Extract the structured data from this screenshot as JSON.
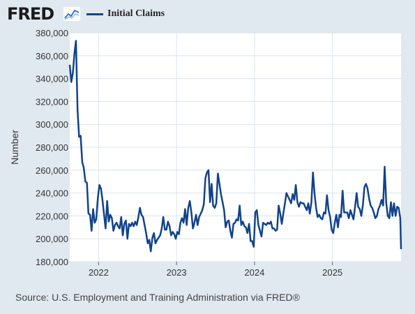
{
  "header": {
    "logo_text": "FRED",
    "logo_icon": "trend-line-icon",
    "legend_label": "Initial Claims"
  },
  "colors": {
    "series": "#12428a",
    "background": "#e1e9f0",
    "plot_background": "#ffffff",
    "grid": "#dbe3ea"
  },
  "footer": {
    "source": "Source: U.S. Employment and Training Administration via FRED®"
  },
  "chart_data": {
    "type": "line",
    "title": "",
    "ylabel": "Number",
    "xlabel": "",
    "ylim": [
      180000,
      380000
    ],
    "xlim": [
      2021.63,
      2025.88
    ],
    "y_ticks": [
      180000,
      200000,
      220000,
      240000,
      260000,
      280000,
      300000,
      320000,
      340000,
      360000,
      380000
    ],
    "y_tick_labels": [
      "180,000",
      "200,000",
      "220,000",
      "240,000",
      "260,000",
      "280,000",
      "300,000",
      "320,000",
      "340,000",
      "360,000",
      "380,000"
    ],
    "x_ticks": [
      2022,
      2023,
      2024,
      2025
    ],
    "x_tick_labels": [
      "2022",
      "2023",
      "2024",
      "2025"
    ],
    "grid": true,
    "series": [
      {
        "name": "Initial Claims",
        "points": [
          [
            2021.63,
            352000
          ],
          [
            2021.65,
            337000
          ],
          [
            2021.67,
            345000
          ],
          [
            2021.69,
            362000
          ],
          [
            2021.71,
            373000
          ],
          [
            2021.73,
            312000
          ],
          [
            2021.75,
            289000
          ],
          [
            2021.77,
            290000
          ],
          [
            2021.79,
            267000
          ],
          [
            2021.81,
            262000
          ],
          [
            2021.83,
            250000
          ],
          [
            2021.85,
            249000
          ],
          [
            2021.87,
            222000
          ],
          [
            2021.89,
            221000
          ],
          [
            2021.91,
            207000
          ],
          [
            2021.93,
            226000
          ],
          [
            2021.95,
            214000
          ],
          [
            2021.97,
            217000
          ],
          [
            2021.99,
            235000
          ],
          [
            2022.01,
            247000
          ],
          [
            2022.03,
            244000
          ],
          [
            2022.05,
            234000
          ],
          [
            2022.07,
            221000
          ],
          [
            2022.09,
            209000
          ],
          [
            2022.11,
            233000
          ],
          [
            2022.13,
            215000
          ],
          [
            2022.15,
            221000
          ],
          [
            2022.17,
            218000
          ],
          [
            2022.19,
            207000
          ],
          [
            2022.21,
            212000
          ],
          [
            2022.23,
            214000
          ],
          [
            2022.25,
            211000
          ],
          [
            2022.27,
            209000
          ],
          [
            2022.29,
            219000
          ],
          [
            2022.31,
            203000
          ],
          [
            2022.33,
            213000
          ],
          [
            2022.35,
            216000
          ],
          [
            2022.37,
            200000
          ],
          [
            2022.39,
            213000
          ],
          [
            2022.41,
            211000
          ],
          [
            2022.43,
            214000
          ],
          [
            2022.45,
            211000
          ],
          [
            2022.47,
            215000
          ],
          [
            2022.49,
            212000
          ],
          [
            2022.51,
            219000
          ],
          [
            2022.53,
            227000
          ],
          [
            2022.55,
            221000
          ],
          [
            2022.57,
            219000
          ],
          [
            2022.59,
            212000
          ],
          [
            2022.61,
            205000
          ],
          [
            2022.63,
            196000
          ],
          [
            2022.65,
            199000
          ],
          [
            2022.67,
            189000
          ],
          [
            2022.69,
            201000
          ],
          [
            2022.71,
            205000
          ],
          [
            2022.73,
            196000
          ],
          [
            2022.75,
            199000
          ],
          [
            2022.77,
            201000
          ],
          [
            2022.79,
            203000
          ],
          [
            2022.81,
            209000
          ],
          [
            2022.83,
            219000
          ],
          [
            2022.85,
            208000
          ],
          [
            2022.87,
            208000
          ],
          [
            2022.89,
            215000
          ],
          [
            2022.91,
            211000
          ],
          [
            2022.93,
            203000
          ],
          [
            2022.95,
            206000
          ],
          [
            2022.97,
            204000
          ],
          [
            2022.99,
            200000
          ],
          [
            2023.01,
            206000
          ],
          [
            2023.03,
            204000
          ],
          [
            2023.05,
            214000
          ],
          [
            2023.07,
            218000
          ],
          [
            2023.09,
            214000
          ],
          [
            2023.11,
            226000
          ],
          [
            2023.13,
            212000
          ],
          [
            2023.15,
            227000
          ],
          [
            2023.17,
            233000
          ],
          [
            2023.19,
            223000
          ],
          [
            2023.21,
            209000
          ],
          [
            2023.23,
            214000
          ],
          [
            2023.25,
            221000
          ],
          [
            2023.27,
            212000
          ],
          [
            2023.29,
            219000
          ],
          [
            2023.31,
            222000
          ],
          [
            2023.33,
            225000
          ],
          [
            2023.35,
            230000
          ],
          [
            2023.37,
            253000
          ],
          [
            2023.39,
            258000
          ],
          [
            2023.41,
            260000
          ],
          [
            2023.43,
            232000
          ],
          [
            2023.45,
            248000
          ],
          [
            2023.47,
            229000
          ],
          [
            2023.49,
            227000
          ],
          [
            2023.51,
            231000
          ],
          [
            2023.53,
            257000
          ],
          [
            2023.55,
            248000
          ],
          [
            2023.57,
            239000
          ],
          [
            2023.59,
            232000
          ],
          [
            2023.61,
            225000
          ],
          [
            2023.63,
            210000
          ],
          [
            2023.65,
            215000
          ],
          [
            2023.67,
            216000
          ],
          [
            2023.69,
            207000
          ],
          [
            2023.71,
            201000
          ],
          [
            2023.73,
            213000
          ],
          [
            2023.75,
            214000
          ],
          [
            2023.77,
            217000
          ],
          [
            2023.79,
            216000
          ],
          [
            2023.81,
            229000
          ],
          [
            2023.83,
            212000
          ],
          [
            2023.85,
            215000
          ],
          [
            2023.87,
            211000
          ],
          [
            2023.89,
            210000
          ],
          [
            2023.91,
            205000
          ],
          [
            2023.93,
            213000
          ],
          [
            2023.95,
            198000
          ],
          [
            2023.97,
            198000
          ],
          [
            2023.99,
            193000
          ],
          [
            2024.01,
            223000
          ],
          [
            2024.03,
            225000
          ],
          [
            2024.05,
            212000
          ],
          [
            2024.07,
            207000
          ],
          [
            2024.09,
            202000
          ],
          [
            2024.11,
            214000
          ],
          [
            2024.13,
            213000
          ],
          [
            2024.15,
            212000
          ],
          [
            2024.17,
            214000
          ],
          [
            2024.19,
            213000
          ],
          [
            2024.21,
            215000
          ],
          [
            2024.23,
            209000
          ],
          [
            2024.25,
            209000
          ],
          [
            2024.27,
            207000
          ],
          [
            2024.29,
            208000
          ],
          [
            2024.31,
            229000
          ],
          [
            2024.33,
            222000
          ],
          [
            2024.35,
            213000
          ],
          [
            2024.37,
            222000
          ],
          [
            2024.39,
            231000
          ],
          [
            2024.41,
            240000
          ],
          [
            2024.43,
            237000
          ],
          [
            2024.45,
            234000
          ],
          [
            2024.47,
            231000
          ],
          [
            2024.49,
            239000
          ],
          [
            2024.51,
            234000
          ],
          [
            2024.53,
            247000
          ],
          [
            2024.55,
            232000
          ],
          [
            2024.57,
            228000
          ],
          [
            2024.59,
            232000
          ],
          [
            2024.61,
            231000
          ],
          [
            2024.63,
            231000
          ],
          [
            2024.65,
            228000
          ],
          [
            2024.67,
            225000
          ],
          [
            2024.69,
            231000
          ],
          [
            2024.71,
            222000
          ],
          [
            2024.73,
            232000
          ],
          [
            2024.75,
            258000
          ],
          [
            2024.77,
            240000
          ],
          [
            2024.79,
            227000
          ],
          [
            2024.81,
            219000
          ],
          [
            2024.83,
            221000
          ],
          [
            2024.85,
            218000
          ],
          [
            2024.87,
            217000
          ],
          [
            2024.89,
            223000
          ],
          [
            2024.91,
            222000
          ],
          [
            2024.93,
            238000
          ],
          [
            2024.95,
            225000
          ],
          [
            2024.97,
            219000
          ],
          [
            2024.99,
            208000
          ],
          [
            2025.01,
            205000
          ],
          [
            2025.03,
            214000
          ],
          [
            2025.05,
            221000
          ],
          [
            2025.07,
            210000
          ],
          [
            2025.09,
            221000
          ],
          [
            2025.11,
            219000
          ],
          [
            2025.13,
            242000
          ],
          [
            2025.15,
            223000
          ],
          [
            2025.17,
            223000
          ],
          [
            2025.19,
            223000
          ],
          [
            2025.21,
            218000
          ],
          [
            2025.23,
            225000
          ],
          [
            2025.25,
            221000
          ],
          [
            2025.27,
            217000
          ],
          [
            2025.29,
            228000
          ],
          [
            2025.31,
            240000
          ],
          [
            2025.33,
            228000
          ],
          [
            2025.35,
            226000
          ],
          [
            2025.37,
            220000
          ],
          [
            2025.39,
            229000
          ],
          [
            2025.41,
            245000
          ],
          [
            2025.43,
            248000
          ],
          [
            2025.45,
            244000
          ],
          [
            2025.47,
            235000
          ],
          [
            2025.49,
            229000
          ],
          [
            2025.51,
            227000
          ],
          [
            2025.53,
            223000
          ],
          [
            2025.55,
            218000
          ],
          [
            2025.57,
            220000
          ],
          [
            2025.59,
            226000
          ],
          [
            2025.61,
            229000
          ],
          [
            2025.63,
            234000
          ],
          [
            2025.65,
            229000
          ],
          [
            2025.67,
            263000
          ],
          [
            2025.69,
            231000
          ],
          [
            2025.71,
            220000
          ],
          [
            2025.73,
            218000
          ],
          [
            2025.75,
            232000
          ],
          [
            2025.77,
            220000
          ],
          [
            2025.79,
            231000
          ],
          [
            2025.81,
            220000
          ],
          [
            2025.83,
            228000
          ],
          [
            2025.85,
            227000
          ],
          [
            2025.87,
            218000
          ],
          [
            2025.88,
            191000
          ]
        ]
      }
    ]
  }
}
